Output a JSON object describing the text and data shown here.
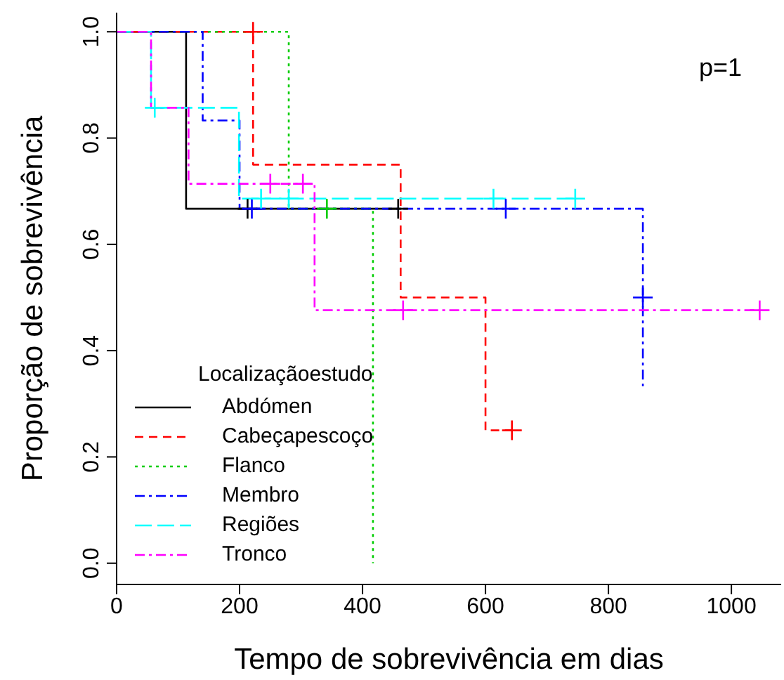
{
  "chart_data": {
    "type": "step",
    "xlabel": "Tempo de sobrevivência em dias",
    "ylabel": "Proporção de sobrevivência",
    "legend_title": "Localizaçãoestudo",
    "annotations": [
      "p=1"
    ],
    "xlim": [
      0,
      1081
    ],
    "xticks": [
      0,
      200,
      400,
      600,
      800,
      1000
    ],
    "ylim": [
      -0.04,
      1.036
    ],
    "yticks": [
      {
        "value": 0,
        "label": "0.0"
      },
      {
        "value": 0.2,
        "label": "0.2"
      },
      {
        "value": 0.4,
        "label": "0.4"
      },
      {
        "value": 0.6,
        "label": "0.6"
      },
      {
        "value": 0.8,
        "label": "0.8"
      },
      {
        "value": 1,
        "label": "1.0"
      }
    ],
    "grid": false,
    "legend": "bottom left",
    "marker": "none",
    "series": [
      {
        "name": "Abdómen",
        "color": "#000000",
        "line_style": "solid",
        "x": [
          0,
          113,
          463
        ],
        "values": [
          1,
          0.667,
          0.667
        ]
      },
      {
        "name": "Cabeçapescoço",
        "color": "#ff0000",
        "line_style": "dashed",
        "x": [
          0,
          222,
          462,
          600,
          643
        ],
        "values": [
          1,
          0.75,
          0.5,
          0.25,
          0.25
        ]
      },
      {
        "name": "Flanco",
        "color": "#00cd00",
        "line_style": "dotted",
        "x": [
          0,
          280,
          417
        ],
        "values": [
          1,
          0.667,
          0
        ]
      },
      {
        "name": "Membro",
        "color": "#0000ff",
        "line_style": "dashdot",
        "x": [
          0,
          140,
          200,
          856
        ],
        "values": [
          1,
          0.833,
          0.667,
          0.333
        ]
      },
      {
        "name": "Regiões",
        "color": "#00ffff",
        "line_style": "longdash",
        "x": [
          0,
          56,
          199,
          746
        ],
        "values": [
          1,
          0.857,
          0.686,
          0.686
        ]
      },
      {
        "name": "Tronco",
        "color": "#ff00ff",
        "line_style": "dashdot",
        "x": [
          0,
          56,
          117,
          322,
          1046
        ],
        "values": [
          1,
          0.857,
          0.714,
          0.476,
          0.476
        ]
      },
      {
        "type": "scatter",
        "marker": "cross",
        "color": "#000000",
        "x": [
          213,
          458
        ],
        "values": [
          0.667,
          0.667
        ]
      },
      {
        "type": "scatter",
        "marker": "cross",
        "color": "#ff0000",
        "x": [
          222,
          643
        ],
        "values": [
          1,
          0.25
        ]
      },
      {
        "type": "scatter",
        "marker": "cross",
        "color": "#00cd00",
        "x": [
          342
        ],
        "values": [
          0.667
        ]
      },
      {
        "type": "scatter",
        "marker": "cross",
        "color": "#0000ff",
        "x": [
          220,
          633,
          856
        ],
        "values": [
          0.667,
          0.667,
          0.5
        ]
      },
      {
        "type": "scatter",
        "marker": "cross",
        "color": "#00ffff",
        "x": [
          62,
          235,
          280,
          613,
          746
        ],
        "values": [
          0.857,
          0.686,
          0.686,
          0.686,
          0.686
        ]
      },
      {
        "type": "scatter",
        "marker": "cross",
        "color": "#ff00ff",
        "x": [
          250,
          303,
          466,
          1046
        ],
        "values": [
          0.714,
          0.714,
          0.476,
          0.476
        ]
      }
    ]
  }
}
